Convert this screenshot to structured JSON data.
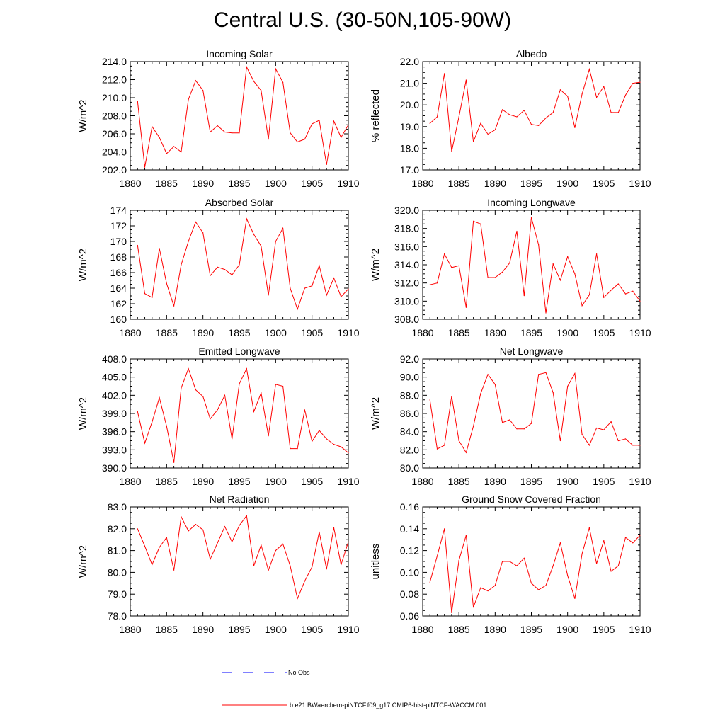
{
  "page_title": "Central U.S. (30-50N,105-90W)",
  "legend": {
    "obs_label": "No Obs",
    "model_label": "b.e21.BWaerchem-piNTCF.f09_g17.CMIP6-hist-piNTCF-WACCM.001",
    "model_color": "#ff0000",
    "obs_color": "#0000ff"
  },
  "chart_data": [
    {
      "type": "line",
      "title": "Incoming Solar",
      "ylabel": "W/m^2",
      "xlim": [
        1880,
        1910
      ],
      "ylim": [
        202.0,
        214.0
      ],
      "yticks": [
        "202.0",
        "204.0",
        "206.0",
        "208.0",
        "210.0",
        "212.0",
        "214.0"
      ],
      "xticks": [
        "1880",
        "1885",
        "1890",
        "1895",
        "1900",
        "1905",
        "1910"
      ],
      "x": [
        1881,
        1882,
        1883,
        1884,
        1885,
        1886,
        1887,
        1888,
        1889,
        1890,
        1891,
        1892,
        1893,
        1894,
        1895,
        1896,
        1897,
        1898,
        1899,
        1900,
        1901,
        1902,
        1903,
        1904,
        1905,
        1906,
        1907,
        1908,
        1909,
        1910
      ],
      "series": [
        {
          "values": [
            209.6,
            202.3,
            206.8,
            205.6,
            203.8,
            204.6,
            204.0,
            209.8,
            211.9,
            210.8,
            206.2,
            206.9,
            206.2,
            206.1,
            206.1,
            213.4,
            211.8,
            210.8,
            205.4,
            213.2,
            211.7,
            206.1,
            205.1,
            205.4,
            207.1,
            207.5,
            202.6,
            207.4,
            205.6,
            207.0
          ]
        }
      ]
    },
    {
      "type": "line",
      "title": "Albedo",
      "ylabel": "% reflected",
      "xlim": [
        1880,
        1910
      ],
      "ylim": [
        17.0,
        22.0
      ],
      "yticks": [
        "17.0",
        "18.0",
        "19.0",
        "20.0",
        "21.0",
        "22.0"
      ],
      "xticks": [
        "1880",
        "1885",
        "1890",
        "1895",
        "1900",
        "1905",
        "1910"
      ],
      "x": [
        1881,
        1882,
        1883,
        1884,
        1885,
        1886,
        1887,
        1888,
        1889,
        1890,
        1891,
        1892,
        1893,
        1894,
        1895,
        1896,
        1897,
        1898,
        1899,
        1900,
        1901,
        1902,
        1903,
        1904,
        1905,
        1906,
        1907,
        1908,
        1909,
        1910
      ],
      "series": [
        {
          "values": [
            19.15,
            19.45,
            21.45,
            17.85,
            19.45,
            21.15,
            18.3,
            19.15,
            18.65,
            18.85,
            19.78,
            19.55,
            19.45,
            19.75,
            19.1,
            19.05,
            19.4,
            19.65,
            20.7,
            20.4,
            18.95,
            20.5,
            21.65,
            20.35,
            20.85,
            19.65,
            19.65,
            20.45,
            21.0,
            21.05
          ]
        }
      ]
    },
    {
      "type": "line",
      "title": "Absorbed Solar",
      "ylabel": "W/m^2",
      "xlim": [
        1880,
        1910
      ],
      "ylim": [
        160,
        174
      ],
      "yticks": [
        "160",
        "162",
        "164",
        "166",
        "168",
        "170",
        "172",
        "174"
      ],
      "xticks": [
        "1880",
        "1885",
        "1890",
        "1895",
        "1900",
        "1905",
        "1910"
      ],
      "x": [
        1881,
        1882,
        1883,
        1884,
        1885,
        1886,
        1887,
        1888,
        1889,
        1890,
        1891,
        1892,
        1893,
        1894,
        1895,
        1896,
        1897,
        1898,
        1899,
        1900,
        1901,
        1902,
        1903,
        1904,
        1905,
        1906,
        1907,
        1908,
        1909,
        1910
      ],
      "series": [
        {
          "values": [
            169.5,
            163.3,
            162.8,
            169.1,
            164.6,
            161.7,
            167.0,
            170.0,
            172.5,
            171.1,
            165.6,
            166.7,
            166.4,
            165.7,
            167.0,
            172.9,
            170.9,
            169.4,
            163.1,
            170.0,
            171.7,
            164.0,
            161.3,
            164.0,
            164.3,
            166.9,
            163.1,
            165.3,
            162.9,
            163.9
          ]
        }
      ]
    },
    {
      "type": "line",
      "title": "Incoming Longwave",
      "ylabel": "W/m^2",
      "xlim": [
        1880,
        1910
      ],
      "ylim": [
        308.0,
        320.0
      ],
      "yticks": [
        "308.0",
        "310.0",
        "312.0",
        "314.0",
        "316.0",
        "318.0",
        "320.0"
      ],
      "xticks": [
        "1880",
        "1885",
        "1890",
        "1895",
        "1900",
        "1905",
        "1910"
      ],
      "x": [
        1881,
        1882,
        1883,
        1884,
        1885,
        1886,
        1887,
        1888,
        1889,
        1890,
        1891,
        1892,
        1893,
        1894,
        1895,
        1896,
        1897,
        1898,
        1899,
        1900,
        1901,
        1902,
        1903,
        1904,
        1905,
        1906,
        1907,
        1908,
        1909,
        1910
      ],
      "series": [
        {
          "values": [
            311.8,
            312.0,
            315.2,
            313.7,
            313.9,
            309.3,
            318.8,
            318.5,
            312.6,
            312.6,
            313.2,
            314.2,
            317.7,
            310.6,
            319.2,
            316.2,
            308.7,
            314.1,
            312.3,
            314.9,
            313.0,
            309.5,
            310.7,
            315.2,
            310.4,
            311.2,
            311.9,
            310.8,
            311.1,
            310.0
          ]
        }
      ]
    },
    {
      "type": "line",
      "title": "Emitted Longwave",
      "ylabel": "W/m^2",
      "xlim": [
        1880,
        1910
      ],
      "ylim": [
        390.0,
        408.0
      ],
      "yticks": [
        "390.0",
        "393.0",
        "396.0",
        "399.0",
        "402.0",
        "405.0",
        "408.0"
      ],
      "xticks": [
        "1880",
        "1885",
        "1890",
        "1895",
        "1900",
        "1905",
        "1910"
      ],
      "x": [
        1881,
        1882,
        1883,
        1884,
        1885,
        1886,
        1887,
        1888,
        1889,
        1890,
        1891,
        1892,
        1893,
        1894,
        1895,
        1896,
        1897,
        1898,
        1899,
        1900,
        1901,
        1902,
        1903,
        1904,
        1905,
        1906,
        1907,
        1908,
        1909,
        1910
      ],
      "series": [
        {
          "values": [
            399.3,
            394.1,
            397.6,
            401.6,
            396.9,
            390.9,
            403.2,
            406.4,
            402.9,
            401.8,
            398.1,
            399.6,
            402.0,
            394.8,
            403.9,
            406.4,
            399.3,
            402.4,
            395.3,
            403.8,
            403.5,
            393.2,
            393.2,
            399.6,
            394.4,
            396.2,
            394.8,
            393.9,
            393.5,
            392.5
          ]
        }
      ]
    },
    {
      "type": "line",
      "title": "Net Longwave",
      "ylabel": "W/m^2",
      "xlim": [
        1880,
        1910
      ],
      "ylim": [
        80.0,
        92.0
      ],
      "yticks": [
        "80.0",
        "82.0",
        "84.0",
        "86.0",
        "88.0",
        "90.0",
        "92.0"
      ],
      "xticks": [
        "1880",
        "1885",
        "1890",
        "1895",
        "1900",
        "1905",
        "1910"
      ],
      "x": [
        1881,
        1882,
        1883,
        1884,
        1885,
        1886,
        1887,
        1888,
        1889,
        1890,
        1891,
        1892,
        1893,
        1894,
        1895,
        1896,
        1897,
        1898,
        1899,
        1900,
        1901,
        1902,
        1903,
        1904,
        1905,
        1906,
        1907,
        1908,
        1909,
        1910
      ],
      "series": [
        {
          "values": [
            87.5,
            82.1,
            82.5,
            87.9,
            83.0,
            81.7,
            84.6,
            88.2,
            90.3,
            89.2,
            85.0,
            85.3,
            84.3,
            84.3,
            84.9,
            90.3,
            90.5,
            88.3,
            83.0,
            89.0,
            90.4,
            83.7,
            82.5,
            84.4,
            84.2,
            85.1,
            83.0,
            83.2,
            82.5,
            82.5
          ]
        }
      ]
    },
    {
      "type": "line",
      "title": "Net Radiation",
      "ylabel": "W/m^2",
      "xlim": [
        1880,
        1910
      ],
      "ylim": [
        78.0,
        83.0
      ],
      "yticks": [
        "78.0",
        "79.0",
        "80.0",
        "81.0",
        "82.0",
        "83.0"
      ],
      "xticks": [
        "1880",
        "1885",
        "1890",
        "1895",
        "1900",
        "1905",
        "1910"
      ],
      "x": [
        1881,
        1882,
        1883,
        1884,
        1885,
        1886,
        1887,
        1888,
        1889,
        1890,
        1891,
        1892,
        1893,
        1894,
        1895,
        1896,
        1897,
        1898,
        1899,
        1900,
        1901,
        1902,
        1903,
        1904,
        1905,
        1906,
        1907,
        1908,
        1909,
        1910
      ],
      "series": [
        {
          "values": [
            82.0,
            81.2,
            80.35,
            81.15,
            81.6,
            80.1,
            82.55,
            81.9,
            82.2,
            81.95,
            80.6,
            81.35,
            82.1,
            81.4,
            82.15,
            82.6,
            80.3,
            81.25,
            80.1,
            81.0,
            81.3,
            80.3,
            78.8,
            79.6,
            80.25,
            81.85,
            80.15,
            82.05,
            80.35,
            81.4
          ]
        }
      ]
    },
    {
      "type": "line",
      "title": "Ground Snow Covered Fraction",
      "ylabel": "unitless",
      "xlim": [
        1880,
        1910
      ],
      "ylim": [
        0.06,
        0.16
      ],
      "yticks": [
        "0.06",
        "0.08",
        "0.10",
        "0.12",
        "0.14",
        "0.16"
      ],
      "xticks": [
        "1880",
        "1885",
        "1890",
        "1895",
        "1900",
        "1905",
        "1910"
      ],
      "x": [
        1881,
        1882,
        1883,
        1884,
        1885,
        1886,
        1887,
        1888,
        1889,
        1890,
        1891,
        1892,
        1893,
        1894,
        1895,
        1896,
        1897,
        1898,
        1899,
        1900,
        1901,
        1902,
        1903,
        1904,
        1905,
        1906,
        1907,
        1908,
        1909,
        1910
      ],
      "series": [
        {
          "values": [
            0.091,
            0.115,
            0.14,
            0.063,
            0.111,
            0.134,
            0.068,
            0.086,
            0.083,
            0.088,
            0.11,
            0.11,
            0.106,
            0.113,
            0.09,
            0.084,
            0.088,
            0.106,
            0.127,
            0.097,
            0.076,
            0.117,
            0.141,
            0.108,
            0.129,
            0.101,
            0.106,
            0.132,
            0.127,
            0.134
          ]
        }
      ]
    }
  ]
}
